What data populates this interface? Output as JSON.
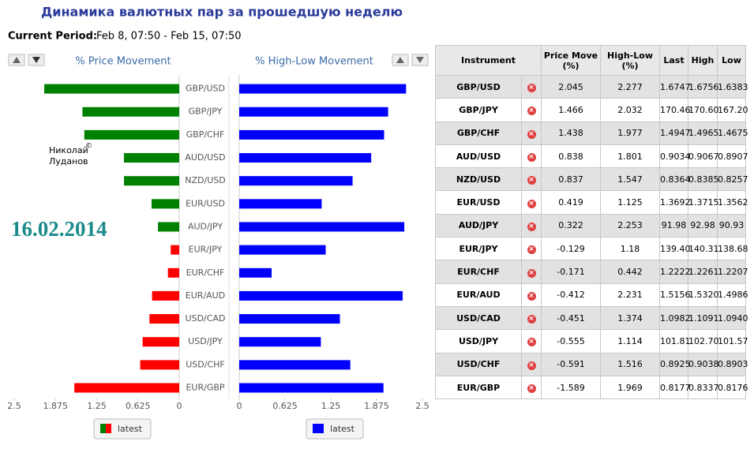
{
  "header": {
    "title": "Динамика валютных пар за прошедшую неделю",
    "period_label": "Current Period:",
    "period": "Feb 8, 07:50 - Feb 15, 07:50"
  },
  "watermark": {
    "author_first": "Николай",
    "copyright": "©",
    "author_last": "Луданов",
    "date": "16.02.2014"
  },
  "chart_data": [
    {
      "type": "hbar",
      "title": "% Price Movement",
      "categories": [
        "GBP/USD",
        "GBP/JPY",
        "GBP/CHF",
        "AUD/USD",
        "NZD/USD",
        "EUR/USD",
        "AUD/JPY",
        "EUR/JPY",
        "EUR/CHF",
        "EUR/AUD",
        "USD/CAD",
        "USD/JPY",
        "USD/CHF",
        "EUR/GBP"
      ],
      "series": [
        {
          "name": "latest",
          "values": [
            2.045,
            1.466,
            1.438,
            0.838,
            0.837,
            0.419,
            0.322,
            0.129,
            0.171,
            0.412,
            0.451,
            0.555,
            0.591,
            1.589
          ],
          "colors": [
            "#008000",
            "#008000",
            "#008000",
            "#008000",
            "#008000",
            "#008000",
            "#008000",
            "#ff0000",
            "#ff0000",
            "#ff0000",
            "#ff0000",
            "#ff0000",
            "#ff0000",
            "#ff0000"
          ]
        }
      ],
      "xlim": [
        2.5,
        0
      ],
      "xticks": [
        2.5,
        1.875,
        1.25,
        0.625,
        0
      ]
    },
    {
      "type": "hbar",
      "title": "% High-Low Movement",
      "series": [
        {
          "name": "latest",
          "color": "#0000ff",
          "values": [
            2.277,
            2.032,
            1.977,
            1.801,
            1.547,
            1.125,
            2.253,
            1.18,
            0.442,
            2.231,
            1.374,
            1.114,
            1.516,
            1.969
          ]
        }
      ],
      "xlim": [
        0,
        2.5
      ],
      "xticks": [
        0,
        0.625,
        1.25,
        1.875,
        2.5
      ]
    }
  ],
  "table": {
    "columns": [
      "Instrument",
      "Price Move (%)",
      "High-Low (%)",
      "Last",
      "High",
      "Low"
    ],
    "rows": [
      [
        "GBP/USD",
        "2.045",
        "2.277",
        "1.6747",
        "1.6756",
        "1.6383"
      ],
      [
        "GBP/JPY",
        "1.466",
        "2.032",
        "170.46",
        "170.60",
        "167.20"
      ],
      [
        "GBP/CHF",
        "1.438",
        "1.977",
        "1.4947",
        "1.4965",
        "1.4675"
      ],
      [
        "AUD/USD",
        "0.838",
        "1.801",
        "0.9034",
        "0.9067",
        "0.8907"
      ],
      [
        "NZD/USD",
        "0.837",
        "1.547",
        "0.8364",
        "0.8385",
        "0.8257"
      ],
      [
        "EUR/USD",
        "0.419",
        "1.125",
        "1.3692",
        "1.3715",
        "1.3562"
      ],
      [
        "AUD/JPY",
        "0.322",
        "2.253",
        "91.98",
        "92.98",
        "90.93"
      ],
      [
        "EUR/JPY",
        "-0.129",
        "1.18",
        "139.40",
        "140.31",
        "138.68"
      ],
      [
        "EUR/CHF",
        "-0.171",
        "0.442",
        "1.2222",
        "1.2261",
        "1.2207"
      ],
      [
        "EUR/AUD",
        "-0.412",
        "2.231",
        "1.5156",
        "1.5320",
        "1.4986"
      ],
      [
        "USD/CAD",
        "-0.451",
        "1.374",
        "1.0982",
        "1.1091",
        "1.0940"
      ],
      [
        "USD/JPY",
        "-0.555",
        "1.114",
        "101.81",
        "102.70",
        "101.57"
      ],
      [
        "USD/CHF",
        "-0.591",
        "1.516",
        "0.8925",
        "0.9038",
        "0.8903"
      ],
      [
        "EUR/GBP",
        "-1.589",
        "1.969",
        "0.8177",
        "0.8337",
        "0.8176"
      ]
    ]
  }
}
